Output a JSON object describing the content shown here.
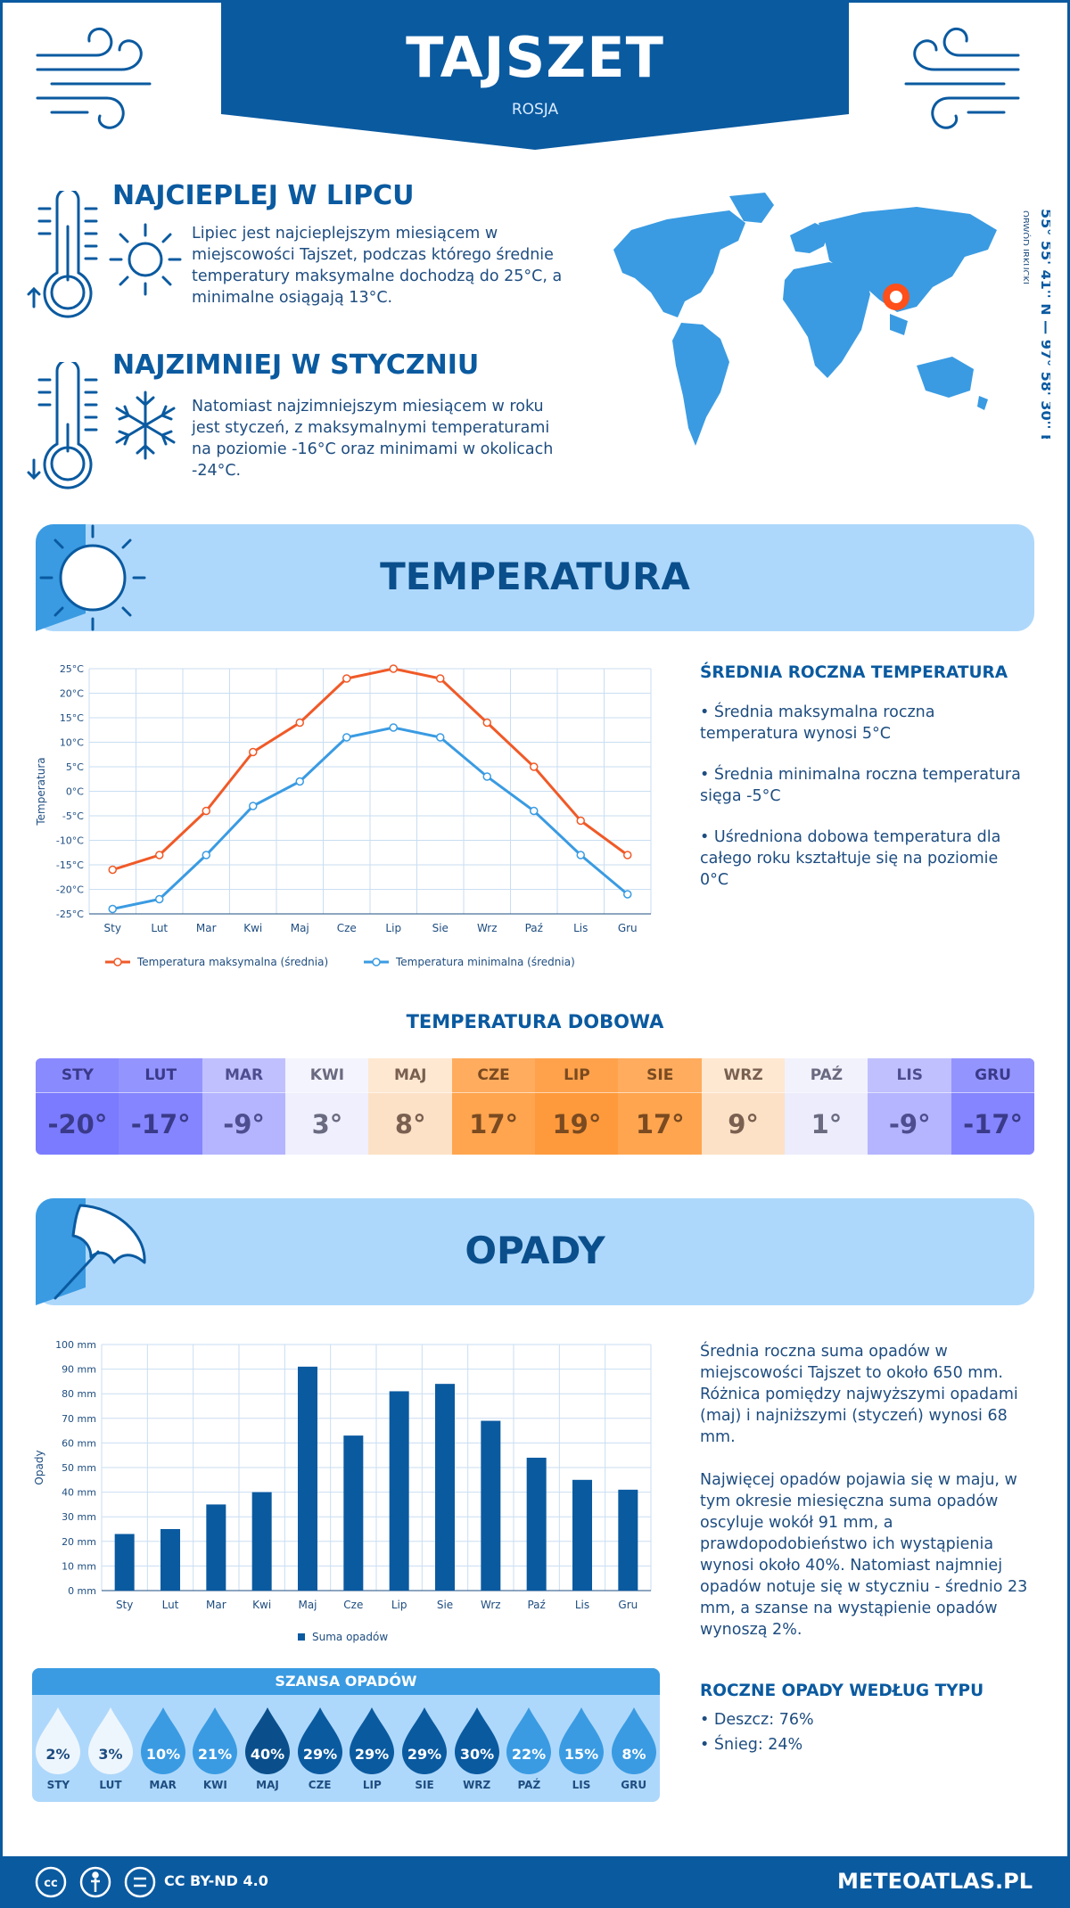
{
  "header": {
    "title": "TAJSZET",
    "country": "ROSJA"
  },
  "facts": {
    "warmest": {
      "title": "NAJCIEPLEJ W LIPCU",
      "text": "Lipiec jest najcieplejszym miesiącem w miejscowości Tajszet, podczas którego średnie temperatury maksymalne dochodzą do 25°C, a minimalne osiągają 13°C."
    },
    "coldest": {
      "title": "NAJZIMNIEJ W STYCZNIU",
      "text": "Natomiast najzimniejszym miesiącem w roku jest styczeń, z maksymalnymi temperaturami na poziomie -16°C oraz minimami w okolicach -24°C."
    }
  },
  "location": {
    "coords": "55° 55' 41'' N — 97° 58' 30'' E",
    "region": "OBWÓD IRKUCKI"
  },
  "temperature": {
    "title": "TEMPERATURA",
    "side_title": "ŚREDNIA ROCZNA TEMPERATURA",
    "side_points": [
      "• Średnia maksymalna roczna temperatura wynosi 5°C",
      "• Średnia minimalna roczna temperatura sięga -5°C",
      "• Uśredniona dobowa temperatura dla całego roku kształtuje się na poziomie 0°C"
    ]
  },
  "temp_chart": {
    "type": "line",
    "categories": [
      "Sty",
      "Lut",
      "Mar",
      "Kwi",
      "Maj",
      "Cze",
      "Lip",
      "Sie",
      "Wrz",
      "Paź",
      "Lis",
      "Gru"
    ],
    "ylabel": "Temperatura",
    "ylim": [
      -25,
      25
    ],
    "yticks": [
      "25°C",
      "20°C",
      "15°C",
      "10°C",
      "5°C",
      "0°C",
      "-5°C",
      "-10°C",
      "-15°C",
      "-20°C",
      "-25°C"
    ],
    "series": [
      {
        "name": "Temperatura maksymalna (średnia)",
        "color": "#f05a28",
        "values": [
          -16,
          -13,
          -4,
          8,
          14,
          23,
          25,
          23,
          14,
          5,
          -6,
          -13
        ]
      },
      {
        "name": "Temperatura minimalna (średnia)",
        "color": "#3a9be2",
        "values": [
          -24,
          -22,
          -13,
          -3,
          2,
          11,
          13,
          11,
          3,
          -4,
          -13,
          -21
        ]
      }
    ]
  },
  "daily": {
    "title": "TEMPERATURA DOBOWA",
    "months": [
      {
        "name": "STY",
        "value": "-20°",
        "bg": "#7b7bff",
        "hbg": "#8a8aff",
        "fg": "#3a3a8a"
      },
      {
        "name": "LUT",
        "value": "-17°",
        "bg": "#8585ff",
        "hbg": "#9494ff",
        "fg": "#3a3a8a"
      },
      {
        "name": "MAR",
        "value": "-9°",
        "bg": "#b5b5ff",
        "hbg": "#c0c0ff",
        "fg": "#4d4d90"
      },
      {
        "name": "KWI",
        "value": "3°",
        "bg": "#efeffd",
        "hbg": "#f4f4fe",
        "fg": "#6a6a80"
      },
      {
        "name": "MAJ",
        "value": "8°",
        "bg": "#fde1c6",
        "hbg": "#fee8d2",
        "fg": "#7a6050"
      },
      {
        "name": "CZE",
        "value": "17°",
        "bg": "#ffa54f",
        "hbg": "#ffac5e",
        "fg": "#7a4a20"
      },
      {
        "name": "LIP",
        "value": "19°",
        "bg": "#ff9a3c",
        "hbg": "#ffa24b",
        "fg": "#7a4a20"
      },
      {
        "name": "SIE",
        "value": "17°",
        "bg": "#ffa54f",
        "hbg": "#ffac5e",
        "fg": "#7a4a20"
      },
      {
        "name": "WRZ",
        "value": "9°",
        "bg": "#fde1c6",
        "hbg": "#fee8d2",
        "fg": "#7a6050"
      },
      {
        "name": "PAŹ",
        "value": "1°",
        "bg": "#ececfc",
        "hbg": "#f2f2fd",
        "fg": "#6a6a80"
      },
      {
        "name": "LIS",
        "value": "-9°",
        "bg": "#b5b5ff",
        "hbg": "#c0c0ff",
        "fg": "#4d4d90"
      },
      {
        "name": "GRU",
        "value": "-17°",
        "bg": "#8585ff",
        "hbg": "#9494ff",
        "fg": "#3a3a8a"
      }
    ]
  },
  "precipitation": {
    "title": "OPADY",
    "text1": "Średnia roczna suma opadów w miejscowości Tajszet to około 650 mm. Różnica pomiędzy najwyższymi opadami (maj) i najniższymi (styczeń) wynosi 68 mm.",
    "text2": "Najwięcej opadów pojawia się w maju, w tym okresie miesięczna suma opadów oscyluje wokół 91 mm, a prawdopodobieństwo ich wystąpienia wynosi około 40%. Natomiast najmniej opadów notuje się w styczniu - średnio 23 mm, a szanse na wystąpienie opadów wynoszą 2%.",
    "type_title": "ROCZNE OPADY WEDŁUG TYPU",
    "types": [
      "• Deszcz: 76%",
      "• Śnieg: 24%"
    ]
  },
  "precip_chart": {
    "type": "bar",
    "categories": [
      "Sty",
      "Lut",
      "Mar",
      "Kwi",
      "Maj",
      "Cze",
      "Lip",
      "Sie",
      "Wrz",
      "Paź",
      "Lis",
      "Gru"
    ],
    "ylabel": "Opady",
    "ylim": [
      0,
      100
    ],
    "yticks": [
      "100 mm",
      "90 mm",
      "80 mm",
      "70 mm",
      "60 mm",
      "50 mm",
      "40 mm",
      "30 mm",
      "20 mm",
      "10 mm",
      "0 mm"
    ],
    "series": [
      {
        "name": "Suma opadów",
        "color": "#0a5aa0",
        "values": [
          23,
          25,
          35,
          40,
          91,
          63,
          81,
          84,
          69,
          54,
          45,
          41
        ]
      }
    ]
  },
  "chance": {
    "title": "SZANSA OPADÓW",
    "items": [
      {
        "month": "STY",
        "value": "2%",
        "color": "#eef6fd",
        "fg": "#1e4d80"
      },
      {
        "month": "LUT",
        "value": "3%",
        "color": "#eef6fd",
        "fg": "#1e4d80"
      },
      {
        "month": "MAR",
        "value": "10%",
        "color": "#3a9be2",
        "fg": "#ffffff"
      },
      {
        "month": "KWI",
        "value": "21%",
        "color": "#3a9be2",
        "fg": "#ffffff"
      },
      {
        "month": "MAJ",
        "value": "40%",
        "color": "#0a4f8c",
        "fg": "#ffffff"
      },
      {
        "month": "CZE",
        "value": "29%",
        "color": "#0a5aa0",
        "fg": "#ffffff"
      },
      {
        "month": "LIP",
        "value": "29%",
        "color": "#0a5aa0",
        "fg": "#ffffff"
      },
      {
        "month": "SIE",
        "value": "29%",
        "color": "#0a5aa0",
        "fg": "#ffffff"
      },
      {
        "month": "WRZ",
        "value": "30%",
        "color": "#0a5aa0",
        "fg": "#ffffff"
      },
      {
        "month": "PAŹ",
        "value": "22%",
        "color": "#3a9be2",
        "fg": "#ffffff"
      },
      {
        "month": "LIS",
        "value": "15%",
        "color": "#3a9be2",
        "fg": "#ffffff"
      },
      {
        "month": "GRU",
        "value": "8%",
        "color": "#3a9be2",
        "fg": "#ffffff"
      }
    ]
  },
  "footer": {
    "license": "CC BY-ND 4.0",
    "site": "METEOATLAS.PL"
  }
}
